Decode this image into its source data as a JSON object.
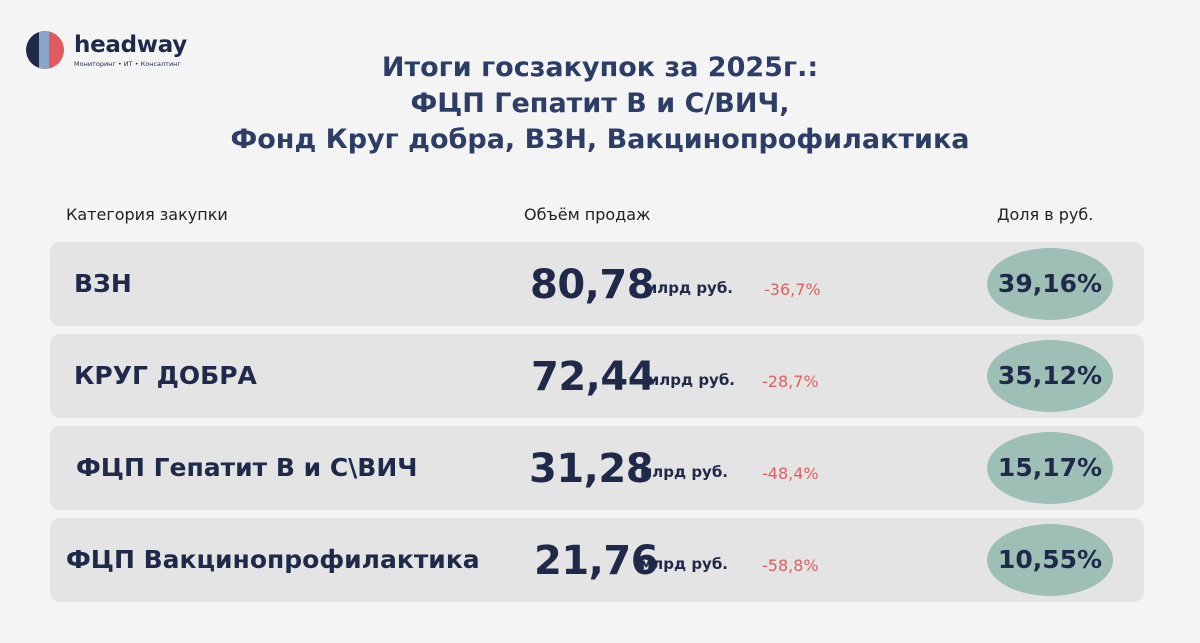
{
  "logo": {
    "name": "headway",
    "tagline": "Мониторинг • ИТ • Консалтинг",
    "colors": [
      "#1f2a4a",
      "#e15a5f",
      "#8aa6c8"
    ]
  },
  "title": {
    "line1": "Итоги госзакупок за 2025г.:",
    "line2": "ФЦП Гепатит В и С/ВИЧ,",
    "line3": "Фонд Круг добра, ВЗН, Вакцинопрофилактика"
  },
  "headers": {
    "category": "Категория закупки",
    "volume": "Объём продаж",
    "share": "Доля в руб."
  },
  "rows": [
    {
      "category": "ВЗН",
      "value": "80,78",
      "unit": "млрд руб.",
      "change": "-36,7%",
      "share": "39,16%"
    },
    {
      "category": "КРУГ ДОБРА",
      "value": "72,44",
      "unit": "млрд руб.",
      "change": "-28,7%",
      "share": "35,12%"
    },
    {
      "category": "ФЦП Гепатит В и С\\ВИЧ",
      "value": "31,28",
      "unit": "млрд руб.",
      "change": "-48,4%",
      "share": "15,17%"
    },
    {
      "category": "ФЦП Вакцинопрофилактика",
      "value": "21,76",
      "unit": "млрд руб.",
      "change": "-58,8%",
      "share": "10,55%"
    }
  ],
  "colors": {
    "background": "#f4f4f4",
    "row": "#e4e4e4",
    "text": "#1f2a4a",
    "title": "#2c3e66",
    "negative": "#e06060",
    "share_pill": "#9ebfb5"
  }
}
